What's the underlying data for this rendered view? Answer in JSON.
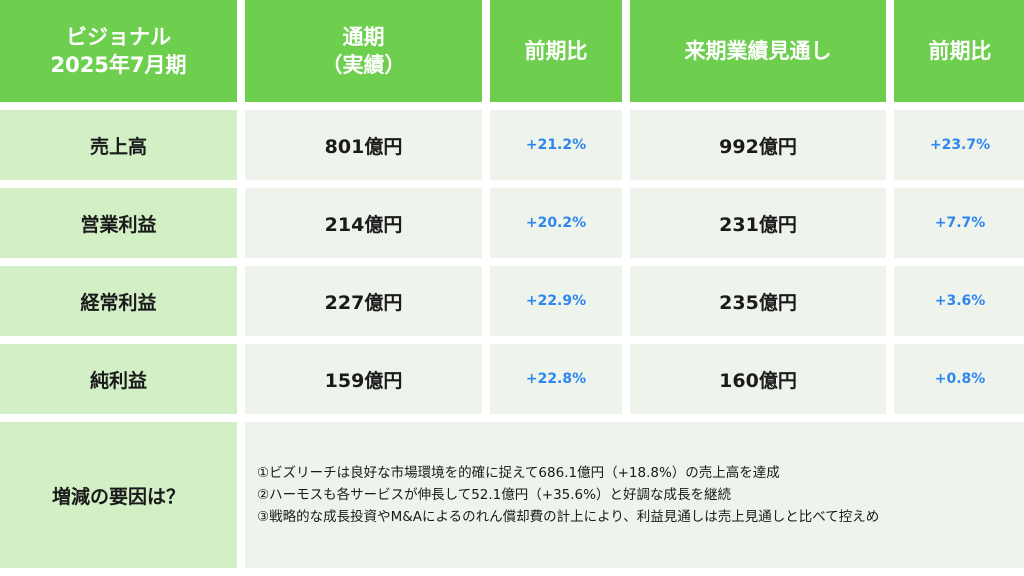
{
  "header": {
    "period_line1": "ビジョナル",
    "period_line2": "2025年7月期",
    "full_year_line1": "通期",
    "full_year_line2": "（実績）",
    "yoy1": "前期比",
    "forecast": "来期業績見通し",
    "yoy2": "前期比"
  },
  "rows": [
    {
      "label": "売上高",
      "actual": "801億円",
      "actual_yoy": "+21.2%",
      "forecast": "992億円",
      "forecast_yoy": "+23.7%"
    },
    {
      "label": "営業利益",
      "actual": "214億円",
      "actual_yoy": "+20.2%",
      "forecast": "231億円",
      "forecast_yoy": "+7.7%"
    },
    {
      "label": "経常利益",
      "actual": "227億円",
      "actual_yoy": "+22.9%",
      "forecast": "235億円",
      "forecast_yoy": "+3.6%"
    },
    {
      "label": "純利益",
      "actual": "159億円",
      "actual_yoy": "+22.8%",
      "forecast": "160億円",
      "forecast_yoy": "+0.8%"
    }
  ],
  "factors": {
    "label": "増減の要因は？",
    "items": [
      "①ビズリーチは良好な市場環境を的確に捉えて686.1億円（+18.8%）の売上高を達成",
      "②ハーモスも各サービスが伸長して52.1億円（+35.6%）と好調な成長を継続",
      "③戦略的な成長投資やM&Aによるのれん償却費の計上により、利益見通しは売上見通しと比べて控えめ"
    ]
  },
  "colors": {
    "header_bg": "#6ecf4f",
    "label_bg": "#d3efc6",
    "value_bg": "#eef4ec",
    "percent_text": "#2e86f0"
  }
}
